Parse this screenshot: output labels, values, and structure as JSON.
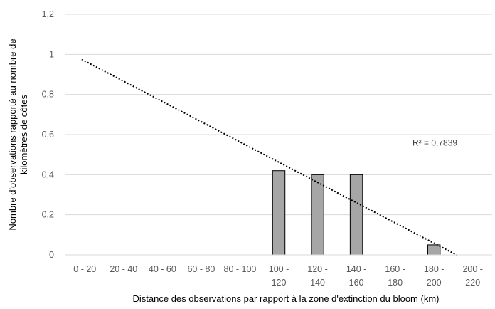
{
  "chart_data": {
    "type": "bar",
    "categories": [
      [
        "0 - 20"
      ],
      [
        "20 - 40"
      ],
      [
        "40 - 60"
      ],
      [
        "60 - 80"
      ],
      [
        "80 - 100"
      ],
      [
        "100 -",
        "120"
      ],
      [
        "120 -",
        "140"
      ],
      [
        "140 -",
        "160"
      ],
      [
        "160 -",
        "180"
      ],
      [
        "180 -",
        "200"
      ],
      [
        "200 -",
        "220"
      ]
    ],
    "values": [
      0,
      0,
      0,
      0,
      0,
      0.42,
      0.4,
      0.4,
      0,
      0.05,
      0
    ],
    "xlabel": "Distance des observations par rapport à la zone d'extinction du bloom (km)",
    "ylabel": [
      "Nombre d'observations rapporté au nombre de",
      "kilomètres de côtes"
    ],
    "ylim": [
      0,
      1.2
    ],
    "yticks": [
      0,
      0.2,
      0.4,
      0.6,
      0.8,
      1,
      1.2
    ],
    "ytick_labels": [
      "0",
      "0,2",
      "0,4",
      "0,6",
      "0,8",
      "1",
      "1,2"
    ],
    "grid": true,
    "bar_color": "#a6a6a6",
    "bar_edge_color": "#000000",
    "trendline": {
      "type": "linear",
      "start": {
        "x": "0 - 20",
        "y": 0.975
      },
      "end": {
        "x": "200 - 220",
        "y": 0.0
      },
      "label": "R² = 0,7839",
      "color": "#000000"
    }
  }
}
